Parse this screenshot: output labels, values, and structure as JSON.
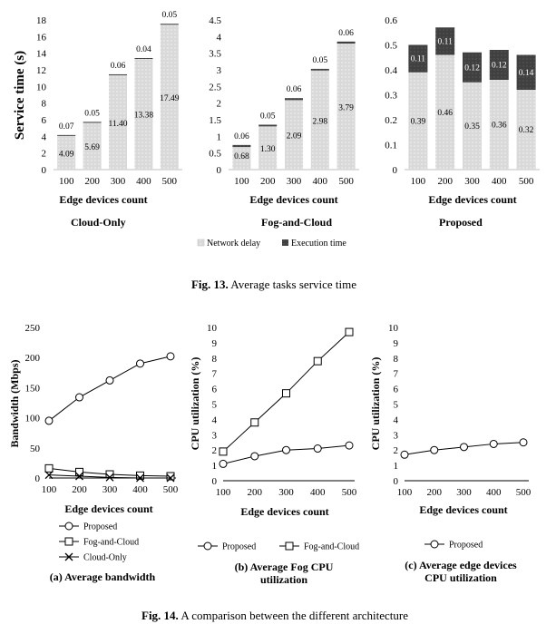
{
  "fig13": {
    "caption_label": "Fig. 13.",
    "caption_text": " Average tasks service time",
    "ylabel": "Service time (s)",
    "legend": {
      "network_delay": "Network delay",
      "execution_time": "Execution time"
    },
    "colors": {
      "network_delay": "#d9d9d9",
      "execution_time": "#404040"
    }
  },
  "fig14": {
    "caption_label": "Fig. 14.",
    "caption_text": " A comparison between the different architecture"
  },
  "chart_data": [
    {
      "id": "cloud-only-service",
      "type": "bar",
      "stacked": true,
      "title": "Cloud-Only",
      "xlabel": "Edge devices count",
      "ylabel": "Service time (s)",
      "categories": [
        "100",
        "200",
        "300",
        "400",
        "500"
      ],
      "series": [
        {
          "name": "Network delay",
          "values": [
            4.09,
            5.69,
            11.4,
            13.38,
            17.49
          ],
          "labels": [
            "4.09",
            "5.69",
            "11.40",
            "13.38",
            "17.49"
          ]
        },
        {
          "name": "Execution time",
          "values": [
            0.07,
            0.05,
            0.06,
            0.04,
            0.05
          ],
          "labels": [
            "0.07",
            "0.05",
            "0.06",
            "0.04",
            "0.05"
          ]
        }
      ],
      "ylim": [
        0,
        18
      ],
      "yticks": [
        "0",
        "2",
        "4",
        "6",
        "8",
        "10",
        "12",
        "14",
        "16",
        "18"
      ]
    },
    {
      "id": "fog-and-cloud-service",
      "type": "bar",
      "stacked": true,
      "title": "Fog-and-Cloud",
      "xlabel": "Edge devices count",
      "ylabel": "",
      "categories": [
        "100",
        "200",
        "300",
        "400",
        "500"
      ],
      "series": [
        {
          "name": "Network delay",
          "values": [
            0.68,
            1.3,
            2.09,
            2.98,
            3.79
          ],
          "labels": [
            "0.68",
            "1.30",
            "2.09",
            "2.98",
            "3.79"
          ]
        },
        {
          "name": "Execution time",
          "values": [
            0.06,
            0.05,
            0.06,
            0.05,
            0.06
          ],
          "labels": [
            "0.06",
            "0.05",
            "0.06",
            "0.05",
            "0.06"
          ]
        }
      ],
      "ylim": [
        0,
        4.5
      ],
      "yticks": [
        "0",
        "0.5",
        "1",
        "1.5",
        "2",
        "2.5",
        "3",
        "3.5",
        "4",
        "4.5"
      ]
    },
    {
      "id": "proposed-service",
      "type": "bar",
      "stacked": true,
      "title": "Proposed",
      "xlabel": "Edge devices count",
      "ylabel": "",
      "categories": [
        "100",
        "200",
        "300",
        "400",
        "500"
      ],
      "series": [
        {
          "name": "Network delay",
          "values": [
            0.39,
            0.46,
            0.35,
            0.36,
            0.32
          ],
          "labels": [
            "0.39",
            "0.46",
            "0.35",
            "0.36",
            "0.32"
          ]
        },
        {
          "name": "Execution time",
          "values": [
            0.11,
            0.11,
            0.12,
            0.12,
            0.14
          ],
          "labels": [
            "0.11",
            "0.11",
            "0.12",
            "0.12",
            "0.14"
          ]
        }
      ],
      "ylim": [
        0,
        0.6
      ],
      "yticks": [
        "0",
        "0.1",
        "0.2",
        "0.3",
        "0.4",
        "0.5",
        "0.6"
      ]
    },
    {
      "id": "avg-bandwidth",
      "type": "line",
      "title": "(a) Average bandwidth",
      "xlabel": "Edge devices count",
      "ylabel": "Bandwidth (Mbps)",
      "x": [
        100,
        200,
        300,
        400,
        500
      ],
      "series": [
        {
          "name": "Proposed",
          "marker": "circle",
          "values": [
            95,
            134,
            162,
            190,
            202
          ]
        },
        {
          "name": "Fog-and-Cloud",
          "marker": "square",
          "values": [
            16,
            10,
            6,
            4,
            3
          ]
        },
        {
          "name": "Cloud-Only",
          "marker": "x",
          "values": [
            5,
            3,
            1,
            0,
            0
          ]
        }
      ],
      "ylim": [
        0,
        250
      ],
      "xticks": [
        "100",
        "200",
        "300",
        "400",
        "500"
      ],
      "yticks": [
        "0",
        "50",
        "100",
        "150",
        "200",
        "250"
      ]
    },
    {
      "id": "avg-fog-cpu",
      "type": "line",
      "title_lines": [
        "(b) Average Fog CPU",
        "utilization"
      ],
      "xlabel": "Edge devices count",
      "ylabel": "CPU utilization (%)",
      "x": [
        100,
        200,
        300,
        400,
        500
      ],
      "series": [
        {
          "name": "Proposed",
          "marker": "circle",
          "values": [
            1.1,
            1.6,
            2.0,
            2.1,
            2.3
          ]
        },
        {
          "name": "Fog-and-Cloud",
          "marker": "square",
          "values": [
            1.9,
            3.8,
            5.7,
            7.8,
            9.7
          ]
        }
      ],
      "ylim": [
        0,
        10
      ],
      "xticks": [
        "100",
        "200",
        "300",
        "400",
        "500"
      ],
      "yticks": [
        "0",
        "1",
        "2",
        "3",
        "4",
        "5",
        "6",
        "7",
        "8",
        "9",
        "10"
      ]
    },
    {
      "id": "avg-edge-cpu",
      "type": "line",
      "title_lines": [
        "(c) Average edge devices",
        "CPU utilization"
      ],
      "xlabel": "Edge devices count",
      "ylabel": "CPU utilization (%)",
      "x": [
        100,
        200,
        300,
        400,
        500
      ],
      "series": [
        {
          "name": "Proposed",
          "marker": "circle",
          "values": [
            1.7,
            2.0,
            2.2,
            2.4,
            2.5
          ]
        }
      ],
      "ylim": [
        0,
        10
      ],
      "xticks": [
        "100",
        "200",
        "300",
        "400",
        "500"
      ],
      "yticks": [
        "0",
        "1",
        "2",
        "3",
        "4",
        "5",
        "6",
        "7",
        "8",
        "9",
        "10"
      ]
    }
  ]
}
